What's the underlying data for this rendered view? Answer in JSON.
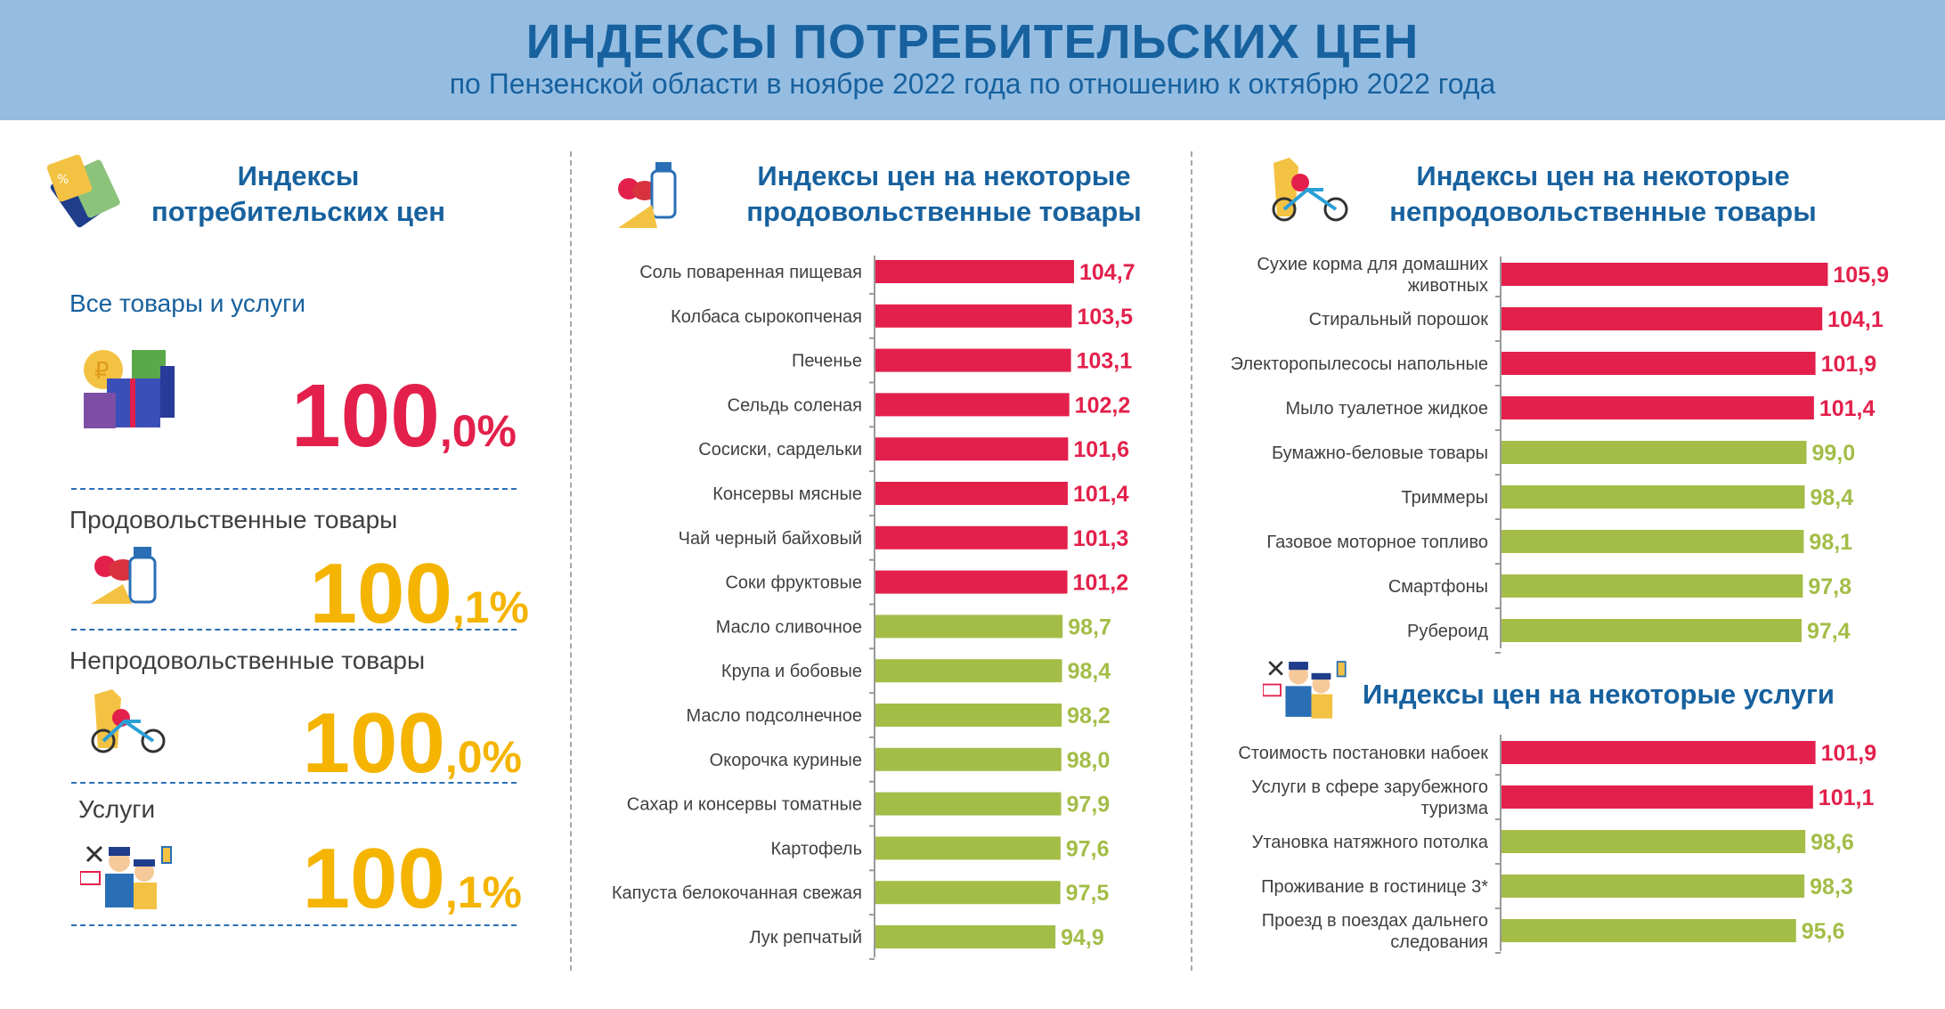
{
  "header": {
    "title": "ИНДЕКСЫ ПОТРЕБИТЕЛЬСКИХ ЦЕН",
    "subtitle": "по Пензенской области в ноябре 2022 года по отношению к октябрю 2022 года"
  },
  "colors": {
    "above_100": "#e3204b",
    "below_100": "#a3bd47",
    "accent": "#17619e",
    "highlight": "#f4b400"
  },
  "left": {
    "title_line1": "Индексы",
    "title_line2": "потребительских  цен",
    "items": [
      {
        "label": "Все товары и услуги",
        "int": "100",
        "frac": ",0%",
        "icon": "gift-boxes-icon"
      },
      {
        "label": "Продовольственные  товары",
        "int": "100",
        "frac": ",1%",
        "icon": "groceries-icon"
      },
      {
        "label": "Непродовольственные  товары",
        "int": "100",
        "frac": ",0%",
        "icon": "clothes-bicycle-icon"
      },
      {
        "label": "Услуги",
        "int": "100",
        "frac": ",1%",
        "icon": "services-people-icon"
      }
    ]
  },
  "food": {
    "title_line1": "Индексы цен на некоторые",
    "title_line2": "продовольственные товары"
  },
  "nonfood": {
    "title_line1": "Индексы цен на некоторые",
    "title_line2": "непродовольственные  товары"
  },
  "services": {
    "title": "Индексы цен на некоторые услуги"
  },
  "chart_data": [
    {
      "type": "bar",
      "orientation": "horizontal",
      "title": "Индексы цен на некоторые продовольственные товары",
      "categories": [
        "Соль поваренная  пищевая",
        "Колбаса сырокопченая",
        "Печенье",
        "Сельдь соленая",
        "Сосиски,  сардельки",
        "Консервы  мясные",
        "Чай черный  байховый",
        "Соки фруктовые",
        "Масло сливочное",
        "Крупа  и бобовые",
        "Масло подсолнечное",
        "Окорочка куриные",
        "Сахар  и консервы  томатные",
        "Картофель",
        "Капуста белокочанная  свежая",
        "Лук репчатый"
      ],
      "values": [
        104.7,
        103.5,
        103.1,
        102.2,
        101.6,
        101.4,
        101.3,
        101.2,
        98.7,
        98.4,
        98.2,
        98.0,
        97.9,
        97.6,
        97.5,
        94.9
      ],
      "value_labels": [
        "104,7",
        "103,5",
        "103,1",
        "102,2",
        "101,6",
        "101,4",
        "101,3",
        "101,2",
        "98,7",
        "98,4",
        "98,2",
        "98,0",
        "97,9",
        "97,6",
        "97,5",
        "94,9"
      ]
    },
    {
      "type": "bar",
      "orientation": "horizontal",
      "title": "Индексы цен на некоторые непродовольственные  товары",
      "categories": [
        [
          "Сухие корма для домашних",
          "животных"
        ],
        "Стиральный порошок",
        "Электоропылесосы напольные",
        "Мыло туалетное жидкое",
        "Бумажно-беловые товары",
        "Триммеры",
        "Газовое моторное топливо",
        "Смартфоны",
        "Рубероид"
      ],
      "values": [
        105.9,
        104.1,
        101.9,
        101.4,
        99.0,
        98.4,
        98.1,
        97.8,
        97.4
      ],
      "value_labels": [
        "105,9",
        "104,1",
        "101,9",
        "101,4",
        "99,0",
        "98,4",
        "98,1",
        "97,8",
        "97,4"
      ]
    },
    {
      "type": "bar",
      "orientation": "horizontal",
      "title": "Индексы цен на некоторые услуги",
      "categories": [
        "Стоимость постановки набоек",
        [
          "Услуги в сфере зарубежного",
          "туризма"
        ],
        "Утановка натяжного потолка",
        "Проживание  в гостинице 3*",
        [
          "Проезд в поездах дальнего",
          "следования"
        ]
      ],
      "values": [
        101.9,
        101.1,
        98.6,
        98.3,
        95.6
      ],
      "value_labels": [
        "101,9",
        "101,1",
        "98,6",
        "98,3",
        "95,6"
      ]
    }
  ]
}
